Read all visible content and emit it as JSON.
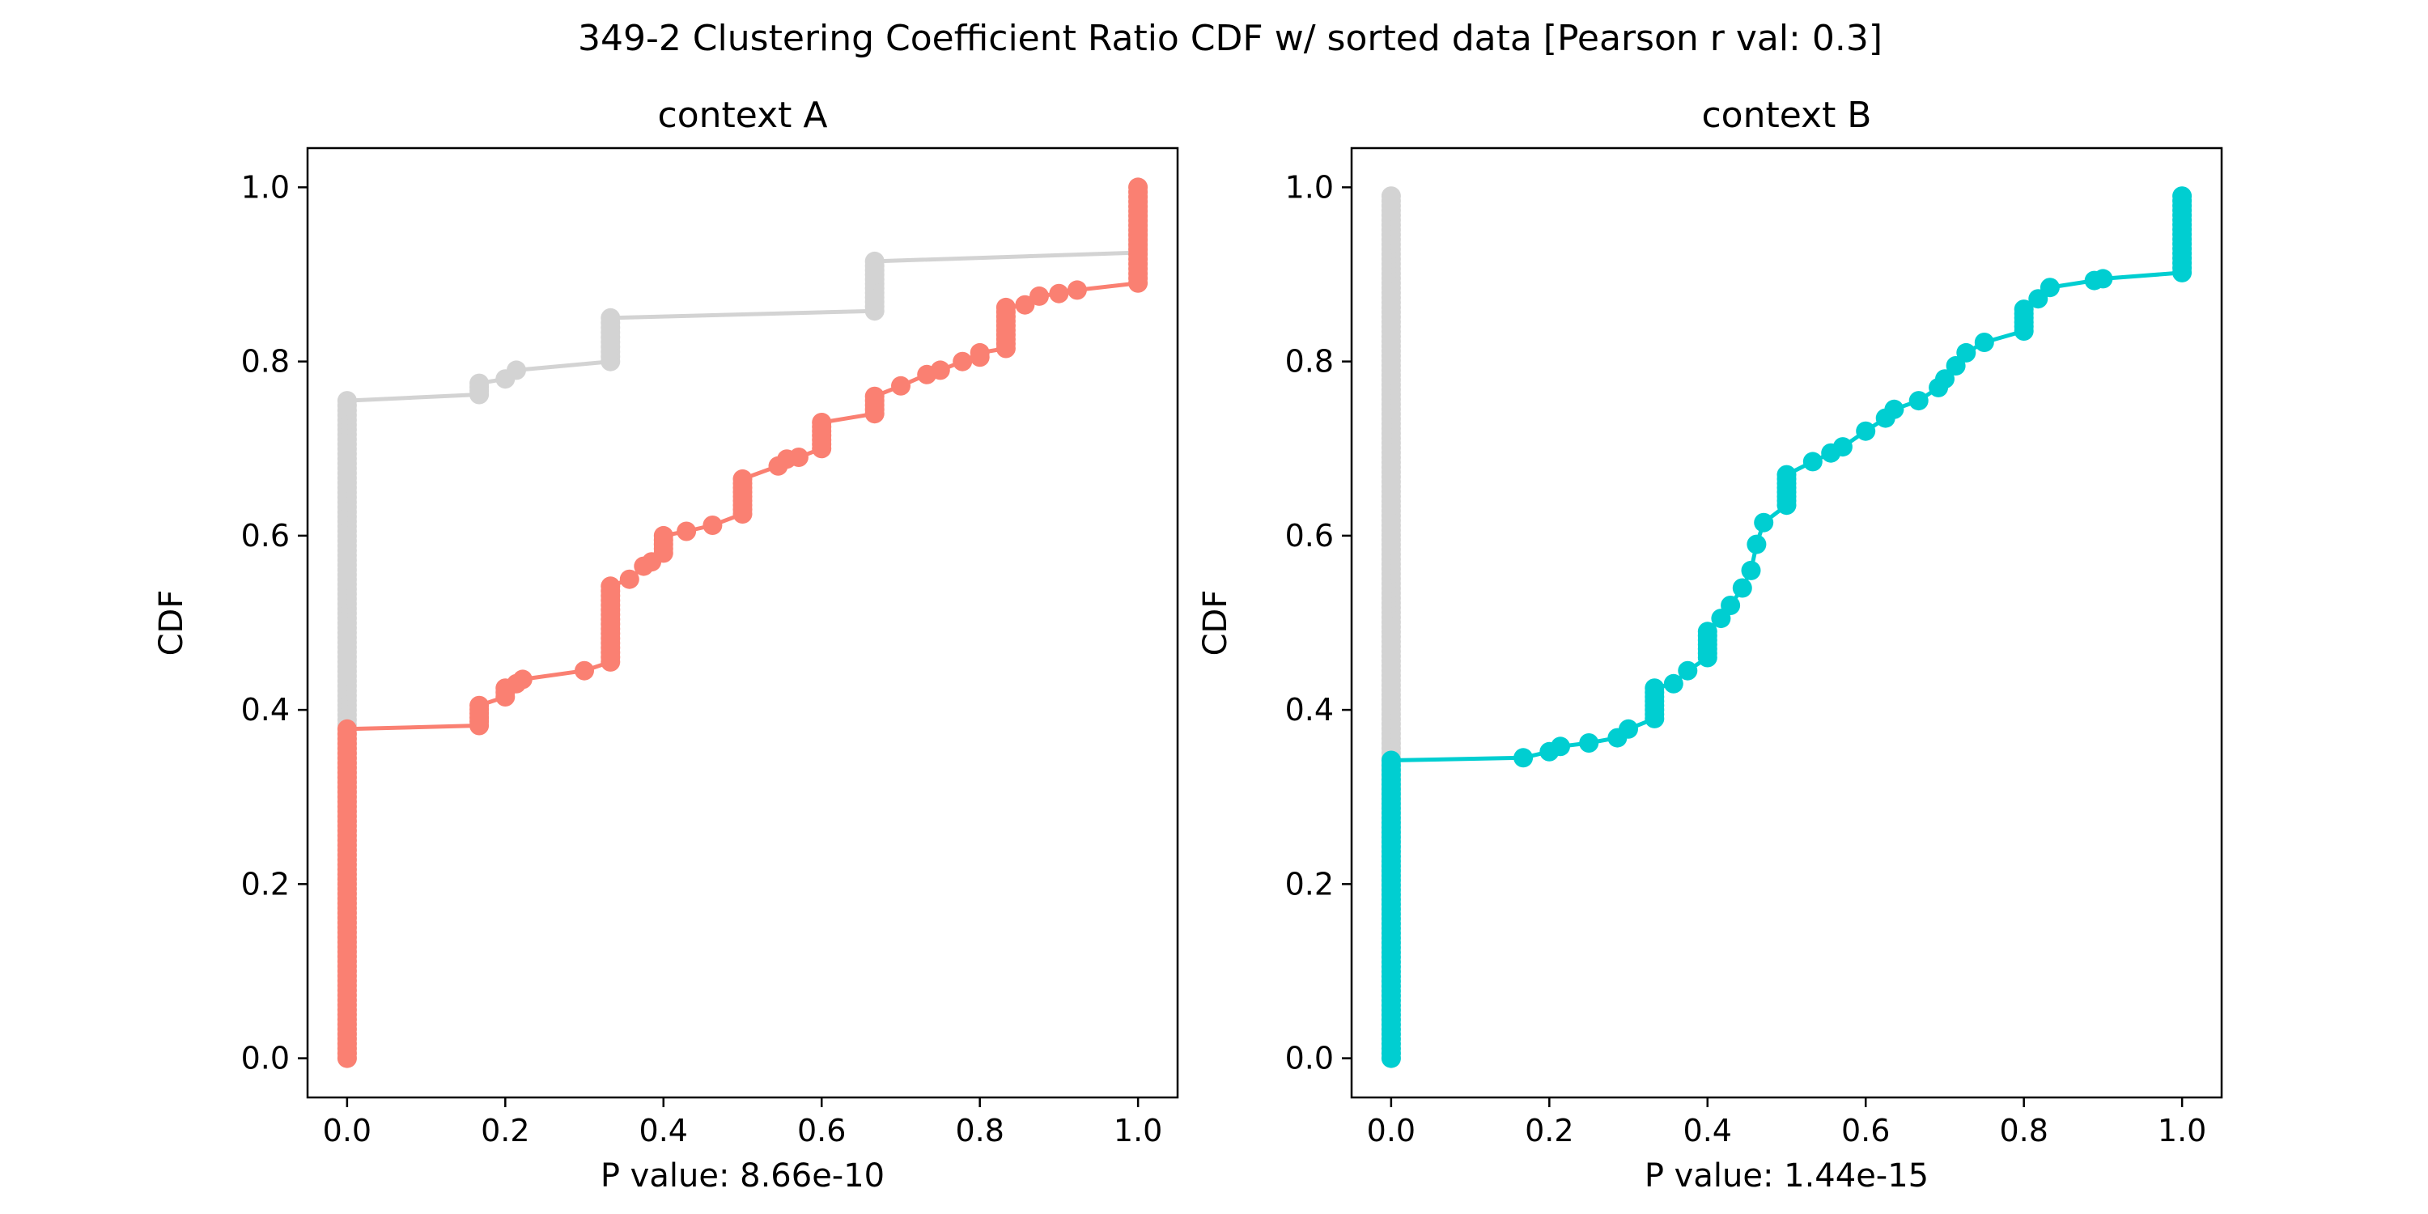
{
  "figure": {
    "suptitle": "349-2 Clustering Coefficient Ratio CDF w/ sorted data [Pearson r val: 0.3]"
  },
  "colors": {
    "context_a_series": "#fa8072",
    "context_b_series": "#00ced1",
    "reference_series": "#d3d3d3",
    "axes": "#000000",
    "background": "#ffffff"
  },
  "chart_data": [
    {
      "type": "line",
      "title": "context A",
      "xlabel": "P value: 8.66e-10",
      "ylabel": "CDF",
      "xlim": [
        -0.05,
        1.05
      ],
      "ylim": [
        -0.045,
        1.045
      ],
      "xticks": [
        0.0,
        0.2,
        0.4,
        0.6,
        0.8,
        1.0
      ],
      "xtick_labels": [
        "0.0",
        "0.2",
        "0.4",
        "0.6",
        "0.8",
        "1.0"
      ],
      "yticks": [
        0.0,
        0.2,
        0.4,
        0.6,
        0.8,
        1.0
      ],
      "ytick_labels": [
        "0.0",
        "0.2",
        "0.4",
        "0.6",
        "0.8",
        "1.0"
      ],
      "grid": false,
      "markers": true,
      "series": [
        {
          "color": "#d3d3d3",
          "points": [
            [
              0.0,
              0.0
            ],
            [
              0.0,
              0.755
            ],
            [
              0.167,
              0.762
            ],
            [
              0.167,
              0.775
            ],
            [
              0.2,
              0.78
            ],
            [
              0.214,
              0.79
            ],
            [
              0.333,
              0.8
            ],
            [
              0.333,
              0.85
            ],
            [
              0.667,
              0.858
            ],
            [
              0.667,
              0.915
            ],
            [
              1.0,
              0.925
            ],
            [
              1.0,
              1.0
            ]
          ]
        },
        {
          "color": "#fa8072",
          "points": [
            [
              0.0,
              0.0
            ],
            [
              0.0,
              0.378
            ],
            [
              0.167,
              0.382
            ],
            [
              0.167,
              0.405
            ],
            [
              0.2,
              0.415
            ],
            [
              0.2,
              0.425
            ],
            [
              0.214,
              0.43
            ],
            [
              0.222,
              0.435
            ],
            [
              0.3,
              0.445
            ],
            [
              0.333,
              0.455
            ],
            [
              0.333,
              0.542
            ],
            [
              0.357,
              0.55
            ],
            [
              0.375,
              0.565
            ],
            [
              0.385,
              0.57
            ],
            [
              0.4,
              0.58
            ],
            [
              0.4,
              0.6
            ],
            [
              0.429,
              0.605
            ],
            [
              0.462,
              0.612
            ],
            [
              0.5,
              0.625
            ],
            [
              0.5,
              0.655
            ],
            [
              0.5,
              0.66
            ],
            [
              0.5,
              0.665
            ],
            [
              0.545,
              0.68
            ],
            [
              0.556,
              0.688
            ],
            [
              0.571,
              0.69
            ],
            [
              0.6,
              0.7
            ],
            [
              0.6,
              0.715
            ],
            [
              0.6,
              0.73
            ],
            [
              0.667,
              0.74
            ],
            [
              0.667,
              0.76
            ],
            [
              0.7,
              0.772
            ],
            [
              0.733,
              0.785
            ],
            [
              0.75,
              0.79
            ],
            [
              0.778,
              0.8
            ],
            [
              0.8,
              0.805
            ],
            [
              0.8,
              0.81
            ],
            [
              0.833,
              0.815
            ],
            [
              0.833,
              0.862
            ],
            [
              0.857,
              0.865
            ],
            [
              0.875,
              0.875
            ],
            [
              0.9,
              0.878
            ],
            [
              0.923,
              0.882
            ],
            [
              1.0,
              0.89
            ],
            [
              1.0,
              1.0
            ]
          ]
        }
      ]
    },
    {
      "type": "line",
      "title": "context B",
      "xlabel": "P value: 1.44e-15",
      "ylabel": "CDF",
      "xlim": [
        -0.05,
        1.05
      ],
      "ylim": [
        -0.045,
        1.045
      ],
      "xticks": [
        0.0,
        0.2,
        0.4,
        0.6,
        0.8,
        1.0
      ],
      "xtick_labels": [
        "0.0",
        "0.2",
        "0.4",
        "0.6",
        "0.8",
        "1.0"
      ],
      "yticks": [
        0.0,
        0.2,
        0.4,
        0.6,
        0.8,
        1.0
      ],
      "ytick_labels": [
        "0.0",
        "0.2",
        "0.4",
        "0.6",
        "0.8",
        "1.0"
      ],
      "grid": false,
      "markers": true,
      "series": [
        {
          "color": "#d3d3d3",
          "points": [
            [
              0.0,
              0.0
            ],
            [
              0.0,
              0.99
            ]
          ]
        },
        {
          "color": "#00ced1",
          "points": [
            [
              0.0,
              0.0
            ],
            [
              0.0,
              0.342
            ],
            [
              0.167,
              0.345
            ],
            [
              0.2,
              0.352
            ],
            [
              0.214,
              0.358
            ],
            [
              0.25,
              0.362
            ],
            [
              0.286,
              0.368
            ],
            [
              0.3,
              0.378
            ],
            [
              0.333,
              0.39
            ],
            [
              0.333,
              0.425
            ],
            [
              0.357,
              0.43
            ],
            [
              0.375,
              0.445
            ],
            [
              0.4,
              0.46
            ],
            [
              0.4,
              0.49
            ],
            [
              0.417,
              0.505
            ],
            [
              0.429,
              0.52
            ],
            [
              0.444,
              0.54
            ],
            [
              0.455,
              0.56
            ],
            [
              0.462,
              0.59
            ],
            [
              0.471,
              0.615
            ],
            [
              0.5,
              0.635
            ],
            [
              0.5,
              0.66
            ],
            [
              0.5,
              0.67
            ],
            [
              0.533,
              0.685
            ],
            [
              0.556,
              0.695
            ],
            [
              0.571,
              0.702
            ],
            [
              0.6,
              0.72
            ],
            [
              0.625,
              0.735
            ],
            [
              0.636,
              0.745
            ],
            [
              0.667,
              0.755
            ],
            [
              0.692,
              0.77
            ],
            [
              0.7,
              0.78
            ],
            [
              0.714,
              0.795
            ],
            [
              0.727,
              0.81
            ],
            [
              0.75,
              0.822
            ],
            [
              0.8,
              0.835
            ],
            [
              0.8,
              0.86
            ],
            [
              0.818,
              0.872
            ],
            [
              0.833,
              0.885
            ],
            [
              0.889,
              0.893
            ],
            [
              0.9,
              0.895
            ],
            [
              1.0,
              0.902
            ],
            [
              1.0,
              0.99
            ]
          ]
        }
      ]
    }
  ]
}
